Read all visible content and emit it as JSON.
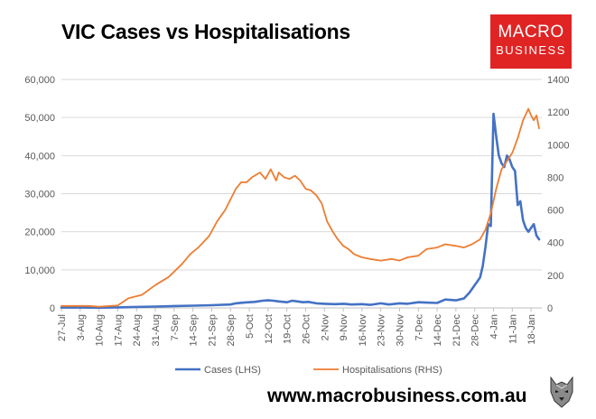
{
  "title": "VIC Cases vs Hospitalisations",
  "logo": {
    "line1": "MACRO",
    "line2": "BUSINESS",
    "color": "#e02424"
  },
  "url": "www.macrobusiness.com.au",
  "chart_data": {
    "type": "line",
    "title": "VIC Cases vs Hospitalisations",
    "y_left": {
      "min": 0,
      "max": 60000,
      "ticks": [
        "0",
        "10,000",
        "20,000",
        "30,000",
        "40,000",
        "50,000",
        "60,000"
      ]
    },
    "y_right": {
      "min": 0,
      "max": 1400,
      "ticks": [
        "0",
        "200",
        "400",
        "600",
        "800",
        "1000",
        "1200",
        "1400"
      ]
    },
    "x_ticks": [
      "27-Jul",
      "3-Aug",
      "10-Aug",
      "17-Aug",
      "24-Aug",
      "31-Aug",
      "7-Sep",
      "14-Sep",
      "21-Sep",
      "28-Sep",
      "5-Oct",
      "12-Oct",
      "19-Oct",
      "26-Oct",
      "2-Nov",
      "9-Nov",
      "16-Nov",
      "23-Nov",
      "30-Nov",
      "7-Dec",
      "14-Dec",
      "21-Dec",
      "28-Dec",
      "4-Jan",
      "11-Jan",
      "18-Jan"
    ],
    "grid": true,
    "legend_position": "bottom",
    "series": [
      {
        "name": "Cases (LHS)",
        "axis": "left",
        "color": "#4472c4",
        "x": [
          0,
          7,
          14,
          21,
          28,
          35,
          42,
          49,
          56,
          63,
          65,
          68,
          70,
          72,
          75,
          77,
          79,
          81,
          84,
          86,
          88,
          90,
          92,
          95,
          98,
          102,
          105,
          108,
          112,
          115,
          119,
          122,
          126,
          129,
          133,
          136,
          140,
          143,
          147,
          150,
          152,
          154,
          155,
          156,
          157,
          158,
          159,
          160,
          161,
          162,
          163,
          164,
          165,
          166,
          167,
          168,
          169,
          170,
          171,
          172,
          173,
          174,
          175,
          176,
          177,
          178
        ],
        "values": [
          100,
          100,
          80,
          150,
          250,
          350,
          500,
          600,
          700,
          900,
          1200,
          1400,
          1500,
          1600,
          1900,
          2000,
          1900,
          1700,
          1500,
          1900,
          1700,
          1500,
          1600,
          1200,
          1100,
          1000,
          1100,
          900,
          1000,
          800,
          1200,
          900,
          1200,
          1100,
          1500,
          1400,
          1300,
          2200,
          2000,
          2500,
          4000,
          6000,
          7000,
          8000,
          11000,
          16000,
          22000,
          21500,
          51000,
          45000,
          40000,
          38000,
          37000,
          40000,
          39000,
          37000,
          36000,
          27000,
          28000,
          23000,
          21000,
          20000,
          21000,
          22000,
          19000,
          18000
        ]
      },
      {
        "name": "Hospitalisations (RHS)",
        "axis": "right",
        "color": "#ed7d31",
        "x": [
          0,
          10,
          14,
          21,
          25,
          30,
          35,
          40,
          45,
          48,
          51,
          55,
          58,
          61,
          65,
          67,
          69,
          71,
          74,
          76,
          78,
          80,
          81,
          83,
          85,
          87,
          89,
          91,
          93,
          95,
          97,
          99,
          101,
          103,
          105,
          107,
          109,
          112,
          115,
          119,
          123,
          126,
          129,
          133,
          136,
          140,
          143,
          147,
          150,
          153,
          156,
          158,
          160,
          162,
          164,
          166,
          168,
          170,
          172,
          174,
          175,
          176,
          177,
          178
        ],
        "values": [
          12,
          12,
          8,
          15,
          60,
          80,
          140,
          190,
          270,
          330,
          370,
          440,
          530,
          600,
          730,
          770,
          770,
          800,
          830,
          790,
          850,
          780,
          830,
          800,
          790,
          810,
          780,
          730,
          720,
          690,
          640,
          530,
          470,
          420,
          380,
          360,
          330,
          310,
          300,
          290,
          300,
          290,
          310,
          320,
          360,
          370,
          390,
          380,
          370,
          390,
          420,
          480,
          580,
          730,
          850,
          900,
          950,
          1040,
          1150,
          1220,
          1180,
          1150,
          1180,
          1100
        ]
      }
    ]
  }
}
